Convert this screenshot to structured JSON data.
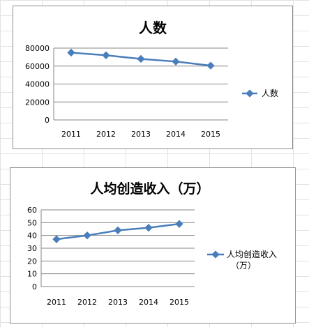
{
  "chart_data": [
    {
      "type": "line",
      "title": "人数",
      "categories": [
        "2011",
        "2012",
        "2013",
        "2014",
        "2015"
      ],
      "series": [
        {
          "name": "人数",
          "values": [
            75000,
            72000,
            68000,
            65000,
            60500
          ]
        }
      ],
      "yticks": [
        "0",
        "20000",
        "40000",
        "60000",
        "80000"
      ],
      "ylim": [
        0,
        80000
      ],
      "grid": true,
      "legend": "right",
      "color": "#4a7ebb"
    },
    {
      "type": "line",
      "title": "人均创造收入（万）",
      "categories": [
        "2011",
        "2012",
        "2013",
        "2014",
        "2015"
      ],
      "series": [
        {
          "name": "人均创造收入（万）",
          "name_lines": [
            "人均创造收入",
            "（万）"
          ],
          "values": [
            37,
            40,
            44,
            46,
            49
          ]
        }
      ],
      "yticks": [
        "0",
        "10",
        "20",
        "30",
        "40",
        "50",
        "60"
      ],
      "ylim": [
        0,
        60
      ],
      "grid": true,
      "legend": "right",
      "color": "#4a7ebb"
    }
  ]
}
